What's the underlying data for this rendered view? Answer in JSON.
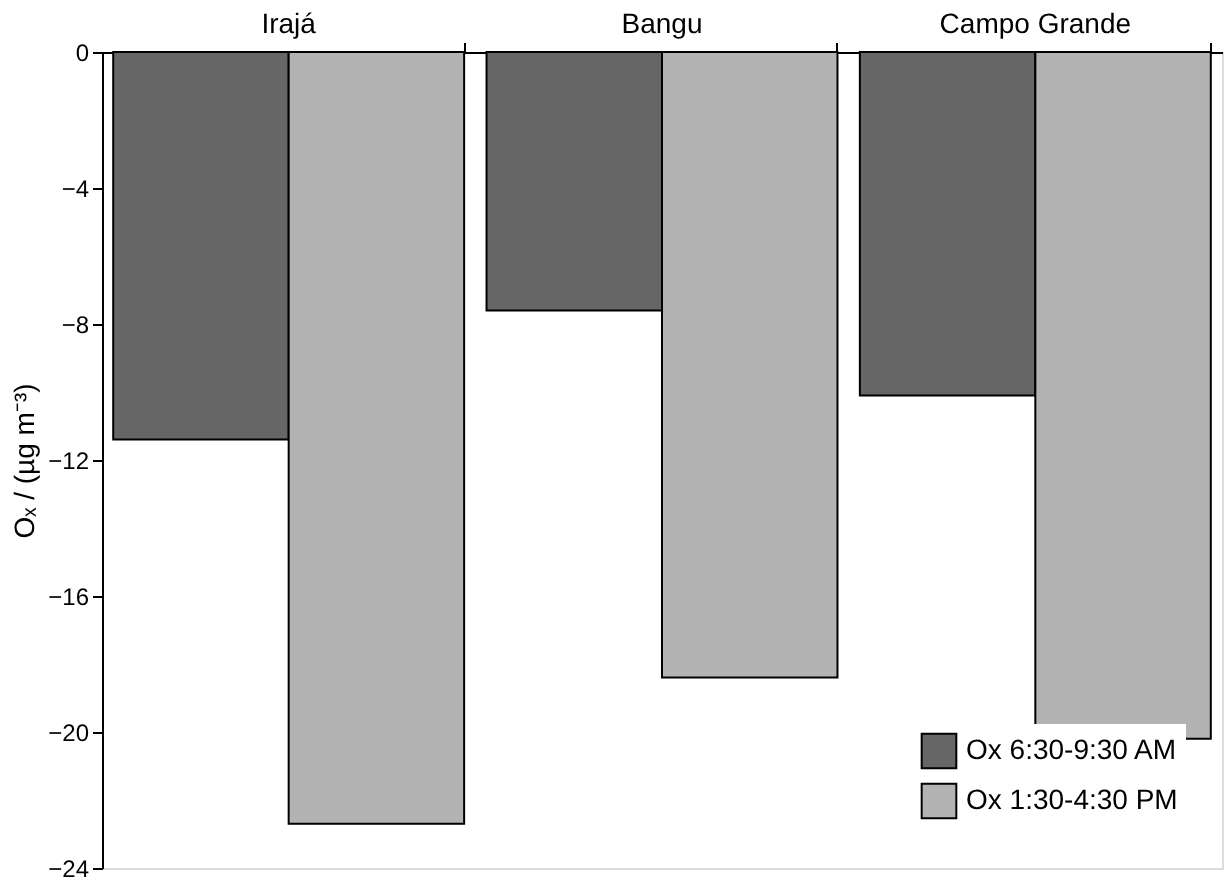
{
  "chart_data": {
    "type": "bar",
    "ylabel": "Oₓ / (µg m⁻³)",
    "categories": [
      "Irajá",
      "Bangu",
      "Campo Grande"
    ],
    "series": [
      {
        "name": "Ox 6:30-9:30 AM",
        "color": "#666666",
        "values": [
          -11.4,
          -7.6,
          -10.1
        ]
      },
      {
        "name": "Ox 1:30-4:30 PM",
        "color": "#b3b3b3",
        "values": [
          -22.7,
          -18.4,
          -20.2
        ]
      }
    ],
    "ylim": [
      -24,
      0
    ],
    "yticks": [
      0,
      -4,
      -8,
      -12,
      -16,
      -20,
      -24
    ],
    "grid": false,
    "legend": "bottom right"
  }
}
